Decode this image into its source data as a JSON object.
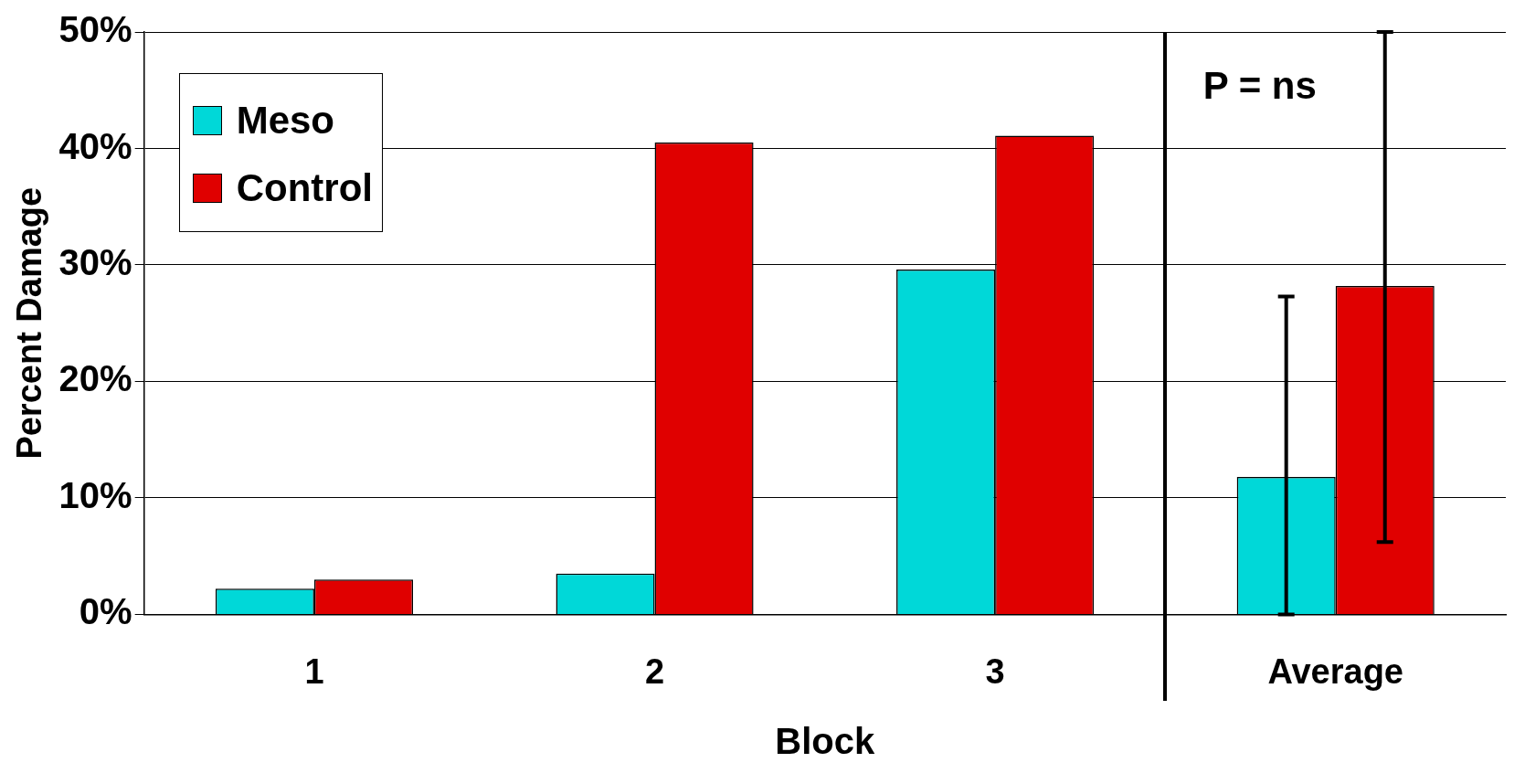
{
  "chart_data": {
    "type": "bar",
    "xlabel": "Block",
    "ylabel": "Percent Damage",
    "categories": [
      "1",
      "2",
      "3",
      "Average"
    ],
    "series": [
      {
        "name": "Meso",
        "color": "#00d8d8",
        "values": [
          2.2,
          3.5,
          29.6,
          11.8
        ],
        "errors": [
          null,
          null,
          null,
          [
            0,
            27.3
          ]
        ]
      },
      {
        "name": "Control",
        "color": "#e00000",
        "values": [
          3.0,
          40.5,
          41.1,
          28.2
        ],
        "errors": [
          null,
          null,
          null,
          [
            6.2,
            50
          ]
        ]
      }
    ],
    "ylim": [
      0,
      50
    ],
    "yticks": [
      {
        "value": 0,
        "label": "0%"
      },
      {
        "value": 10,
        "label": "10%"
      },
      {
        "value": 20,
        "label": "20%"
      },
      {
        "value": 30,
        "label": "30%"
      },
      {
        "value": 40,
        "label": "40%"
      },
      {
        "value": 50,
        "label": "50%"
      }
    ],
    "grid": "y",
    "legend": "top left",
    "annotations": [
      "P = ns"
    ]
  }
}
